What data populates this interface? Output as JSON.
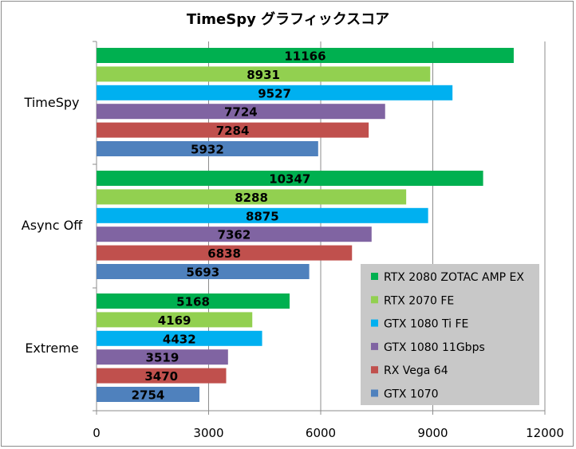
{
  "chart_data": {
    "type": "bar",
    "orientation": "horizontal",
    "title": "TimeSpy グラフィックスコア",
    "categories": [
      "TimeSpy",
      "Async Off",
      "Extreme"
    ],
    "series": [
      {
        "name": "RTX 2080 ZOTAC AMP EX",
        "color": "#00b050",
        "values": [
          11166,
          10347,
          5168
        ]
      },
      {
        "name": "RTX 2070 FE",
        "color": "#92d050",
        "values": [
          8931,
          8288,
          4169
        ]
      },
      {
        "name": "GTX 1080 Ti FE",
        "color": "#00b0f0",
        "values": [
          9527,
          8875,
          4432
        ]
      },
      {
        "name": "GTX 1080 11Gbps",
        "color": "#8064a2",
        "values": [
          7724,
          7362,
          3519
        ]
      },
      {
        "name": "RX Vega 64",
        "color": "#c0504d",
        "values": [
          7284,
          6838,
          3470
        ]
      },
      {
        "name": "GTX 1070",
        "color": "#4f81bd",
        "values": [
          5932,
          5693,
          2754
        ]
      }
    ],
    "xlim": [
      0,
      12000
    ],
    "xticks": [
      "0",
      "3000",
      "6000",
      "9000",
      "12000"
    ],
    "xtick_values": [
      0,
      3000,
      6000,
      9000,
      12000
    ],
    "grid": "vertical",
    "legend": "bottom-right",
    "legend_bg": "#c8c8c8"
  }
}
